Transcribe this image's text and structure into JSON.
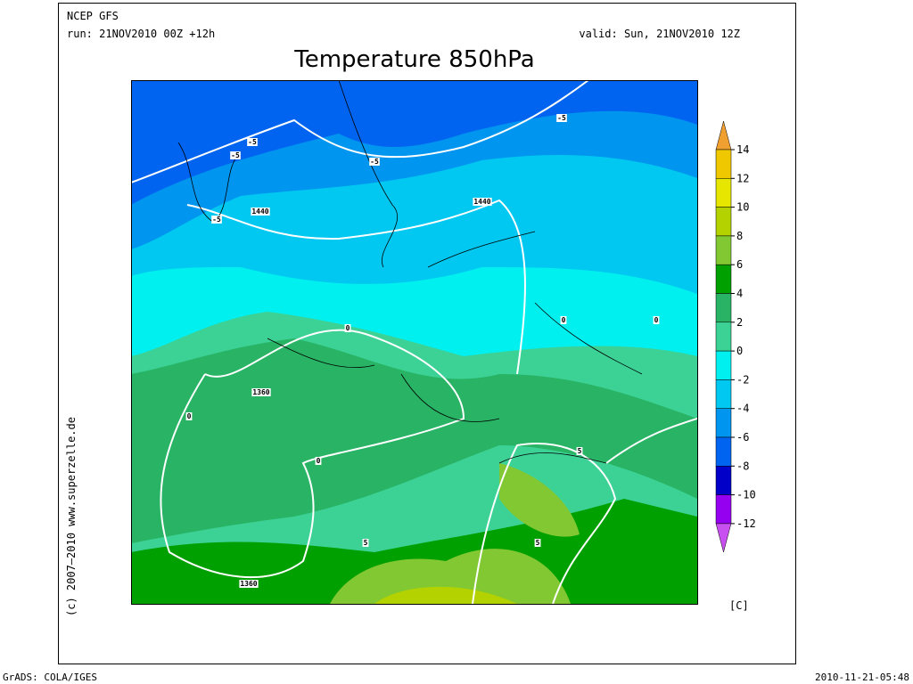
{
  "header": {
    "model": "NCEP GFS",
    "run": "run: 21NOV2010 00Z +12h",
    "valid": "valid: Sun, 21NOV2010 12Z",
    "title": "Temperature 850hPa"
  },
  "copyright": "(c) 2007–2010 www.superzelle.de",
  "footer": {
    "left": "GrADS: COLA/IGES",
    "right": "2010-11-21-05:48"
  },
  "colorbar": {
    "ticks": [
      "14",
      "12",
      "10",
      "8",
      "6",
      "4",
      "2",
      "0",
      "-2",
      "-4",
      "-6",
      "-8",
      "-10",
      "-12"
    ],
    "colors": [
      "#f0a030",
      "#f0c800",
      "#e6e600",
      "#b4d200",
      "#82c832",
      "#00a000",
      "#28b464",
      "#3cd296",
      "#00f0f0",
      "#00c8f0",
      "#0096f0",
      "#0064f0",
      "#0000c8",
      "#9600f0",
      "#c850f0"
    ],
    "unit": "[C]"
  },
  "contour_labels": [
    "-5",
    "-5",
    "-5",
    "-5",
    "-5",
    "1440",
    "1440",
    "0",
    "0",
    "0",
    "0",
    "1360",
    "1360",
    "0",
    "5",
    "5",
    "5"
  ]
}
